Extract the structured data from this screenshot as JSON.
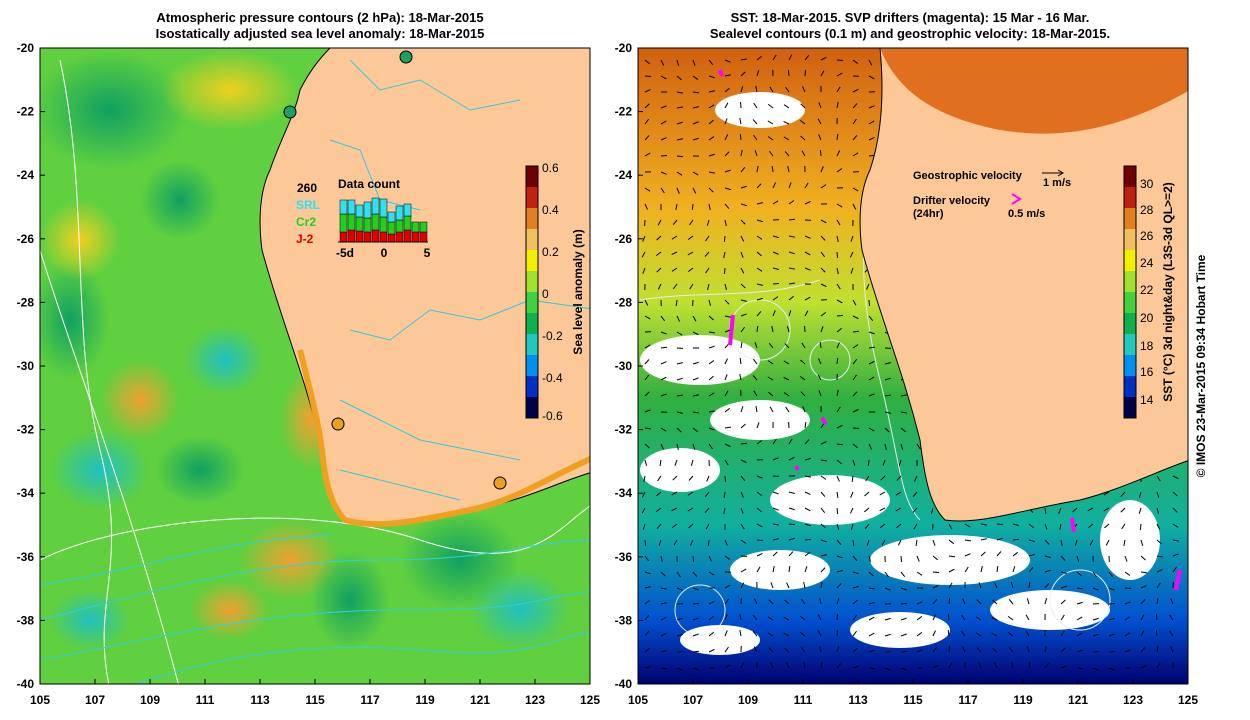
{
  "left_panel": {
    "title_line1": "Atmospheric pressure contours (2 hPa): 18-Mar-2015",
    "title_line2": "Isostatically adjusted sea level anomaly: 18-Mar-2015",
    "colorbar": {
      "label": "Sea level anomaly (m)",
      "ticks": [
        "0.6",
        "0.4",
        "0.2",
        "0",
        "-0.2",
        "-0.4",
        "-0.6"
      ],
      "colors": [
        "#00004a",
        "#0030c0",
        "#0090f0",
        "#20c8c0",
        "#10b050",
        "#40d040",
        "#a0e030",
        "#f0f000",
        "#f0c060",
        "#e08020",
        "#c02010",
        "#700000"
      ]
    },
    "data_count": {
      "title": "Data count",
      "max_label": "260",
      "legend": [
        {
          "name": "SRL",
          "color": "#30e0f0"
        },
        {
          "name": "Cr2",
          "color": "#20d020"
        },
        {
          "name": "J-2",
          "color": "#e00000"
        }
      ],
      "x_ticks": [
        "-5d",
        "0",
        "5"
      ]
    },
    "x_ticks": [
      "105",
      "107",
      "109",
      "111",
      "113",
      "115",
      "117",
      "119",
      "121",
      "123",
      "125"
    ],
    "y_ticks": [
      "-20",
      "-22",
      "-24",
      "-26",
      "-28",
      "-30",
      "-32",
      "-34",
      "-36",
      "-38",
      "-40"
    ]
  },
  "right_panel": {
    "title_line1": "SST: 18-Mar-2015. SVP drifters (magenta): 15 Mar - 16 Mar.",
    "title_line2": "Sealevel contours (0.1 m) and geostrophic velocity: 18-Mar-2015.",
    "legend": {
      "geo_label": "Geostrophic velocity",
      "geo_scale": "1 m/s",
      "drifter_label": "Drifter velocity",
      "drifter_sub": "(24hr)",
      "drifter_scale": "0.5 m/s"
    },
    "colorbar": {
      "label": "SST (°C) 3d night&day (L3S-3d QL>=2)",
      "ticks": [
        "30",
        "28",
        "26",
        "24",
        "22",
        "20",
        "18",
        "16",
        "14"
      ],
      "colors": [
        "#00004a",
        "#0030c0",
        "#0090f0",
        "#20c8c0",
        "#10b050",
        "#40d040",
        "#a0e030",
        "#f0f000",
        "#f0c060",
        "#e08020",
        "#c02010",
        "#700000"
      ]
    },
    "x_ticks": [
      "105",
      "107",
      "109",
      "111",
      "113",
      "115",
      "117",
      "119",
      "121",
      "123",
      "125"
    ],
    "y_ticks": [
      "-20",
      "-22",
      "-24",
      "-26",
      "-28",
      "-30",
      "-32",
      "-34",
      "-36",
      "-38",
      "-40"
    ]
  },
  "credit": "© IMOS 23-Mar-2015 09:34 Hobart Time"
}
